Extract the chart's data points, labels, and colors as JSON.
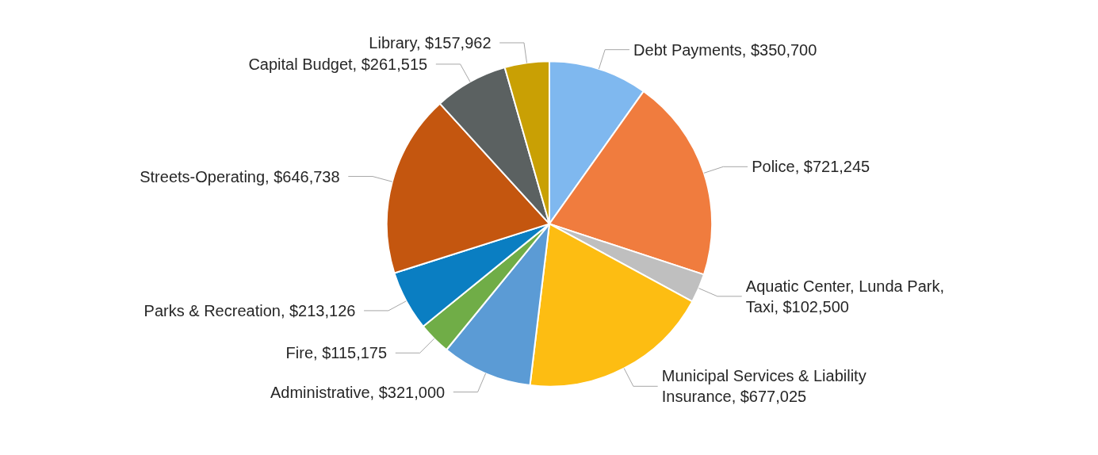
{
  "chart_data": {
    "type": "pie",
    "categories": [
      "Debt Payments",
      "Police",
      "Aquatic Center, Lunda Park, Taxi",
      "Municipal Services & Liability Insurance",
      "Administrative",
      "Fire",
      "Parks & Recreation",
      "Streets-Operating",
      "Capital Budget",
      "Library"
    ],
    "values": [
      350700,
      721245,
      102500,
      677025,
      321000,
      115175,
      213126,
      646738,
      261515,
      157962
    ],
    "value_labels": [
      "$350,700",
      "$721,245",
      "$102,500",
      "$677,025",
      "$321,000",
      "$115,175",
      "$213,126",
      "$646,738",
      "$261,515",
      "$157,962"
    ],
    "colors": [
      "#7fb8ef",
      "#f07c3e",
      "#bfbfbf",
      "#fdbd12",
      "#5b9bd5",
      "#70ad47",
      "#0a7ec2",
      "#c4560f",
      "#5b6161",
      "#c9a004"
    ]
  }
}
